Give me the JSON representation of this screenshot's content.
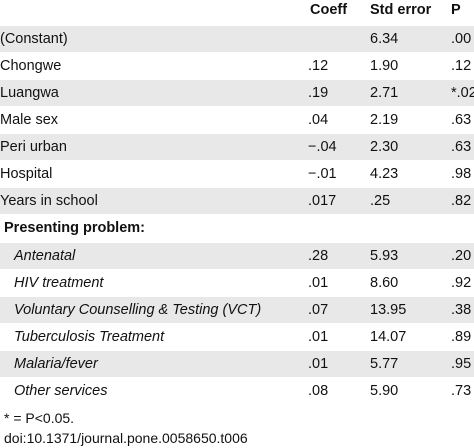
{
  "table": {
    "headers": [
      "",
      "Coeff",
      "Std error",
      "P"
    ],
    "rows": [
      {
        "label": "(Constant)",
        "coeff": "",
        "se": "6.34",
        "p": ".00",
        "shaded": true
      },
      {
        "label": "Chongwe",
        "coeff": ".12",
        "se": "1.90",
        "p": ".12",
        "shaded": false
      },
      {
        "label": "Luangwa",
        "coeff": ".19",
        "se": "2.71",
        "p": "*.02",
        "shaded": true
      },
      {
        "label": "Male sex",
        "coeff": ".04",
        "se": "2.19",
        "p": ".63",
        "shaded": false
      },
      {
        "label": "Peri urban",
        "coeff": "−.04",
        "se": "2.30",
        "p": ".63",
        "shaded": true
      },
      {
        "label": "Hospital",
        "coeff": "−.01",
        "se": "4.23",
        "p": ".98",
        "shaded": false
      },
      {
        "label": "Years in school",
        "coeff": ".017",
        "se": ".25",
        "p": ".82",
        "shaded": true
      }
    ],
    "section_label": "Presenting problem:",
    "sub_rows": [
      {
        "label": "Antenatal",
        "coeff": ".28",
        "se": "5.93",
        "p": ".20",
        "shaded": true
      },
      {
        "label": "HIV treatment",
        "coeff": ".01",
        "se": "8.60",
        "p": ".92",
        "shaded": false
      },
      {
        "label": "Voluntary Counselling & Testing (VCT)",
        "coeff": ".07",
        "se": "13.95",
        "p": ".38",
        "shaded": true
      },
      {
        "label": "Tuberculosis Treatment",
        "coeff": ".01",
        "se": "14.07",
        "p": ".89",
        "shaded": false
      },
      {
        "label": "Malaria/fever",
        "coeff": ".01",
        "se": "5.77",
        "p": ".95",
        "shaded": true
      },
      {
        "label": "Other services",
        "coeff": ".08",
        "se": "5.90",
        "p": ".73",
        "shaded": false
      }
    ]
  },
  "footnote": "* = P<0.05.",
  "doi": "doi:10.1371/journal.pone.0058650.t006",
  "colors": {
    "shade": "#e8e8e8",
    "text": "#111111"
  }
}
